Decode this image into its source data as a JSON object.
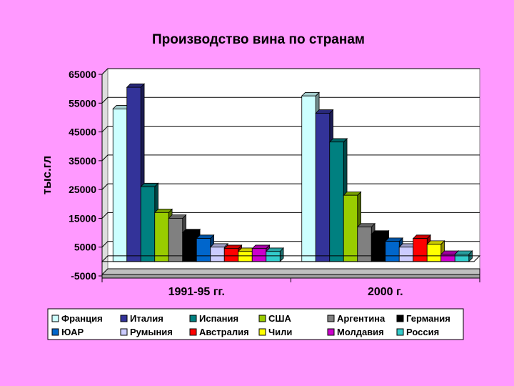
{
  "chart_data": {
    "type": "bar",
    "title": "Производство вина по странам",
    "ylabel": "тыс.гл",
    "xlabel": "",
    "ylim": [
      -5000,
      65000
    ],
    "yticks": [
      "65000",
      "55000",
      "45000",
      "35000",
      "25000",
      "15000",
      "5000",
      "-5000"
    ],
    "ytick_values": [
      65000,
      55000,
      45000,
      35000,
      25000,
      15000,
      5000,
      -5000
    ],
    "categories": [
      "1991-95 гг.",
      "2000 г."
    ],
    "grid": true,
    "legend_position": "bottom",
    "series": [
      {
        "name": "Франция",
        "values": [
          53000,
          57500
        ],
        "color": "#CCFFFF"
      },
      {
        "name": "Италия",
        "values": [
          60500,
          51500
        ],
        "color": "#333399"
      },
      {
        "name": "Испания",
        "values": [
          26000,
          41500
        ],
        "color": "#008080"
      },
      {
        "name": "США",
        "values": [
          17000,
          23000
        ],
        "color": "#99CC00"
      },
      {
        "name": "Аргентина",
        "values": [
          15000,
          12000
        ],
        "color": "#808080"
      },
      {
        "name": "Германия",
        "values": [
          10000,
          9500
        ],
        "color": "#000000"
      },
      {
        "name": "ЮАР",
        "values": [
          8000,
          7000
        ],
        "color": "#0066CC"
      },
      {
        "name": "Румыния",
        "values": [
          5000,
          5000
        ],
        "color": "#CCCCFF"
      },
      {
        "name": "Австралия",
        "values": [
          4500,
          8000
        ],
        "color": "#FF0000"
      },
      {
        "name": "Чили",
        "values": [
          3500,
          6000
        ],
        "color": "#FFFF00"
      },
      {
        "name": "Молдавия",
        "values": [
          4500,
          2500
        ],
        "color": "#CC00CC"
      },
      {
        "name": "Россия",
        "values": [
          3500,
          2500
        ],
        "color": "#33CCCC"
      }
    ]
  }
}
